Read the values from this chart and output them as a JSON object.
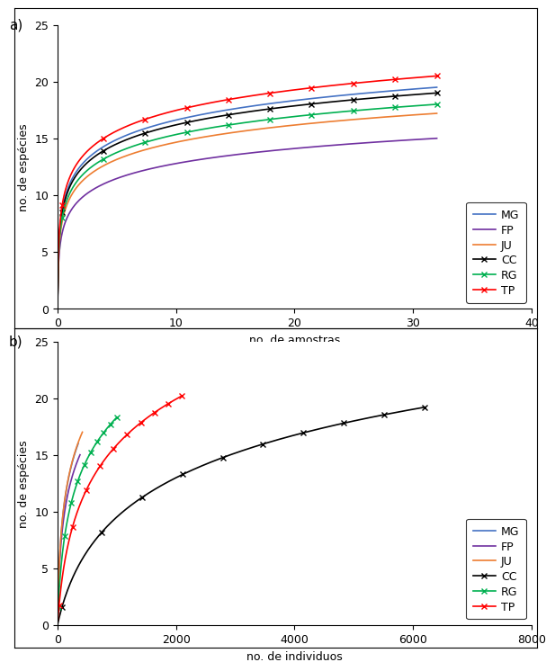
{
  "panel_a": {
    "label": "a)",
    "xlabel": "no. de amostras",
    "ylabel": "no. de espécies",
    "xlim": [
      0,
      40
    ],
    "ylim": [
      0,
      25
    ],
    "xticks": [
      0,
      10,
      20,
      30,
      40
    ],
    "yticks": [
      0,
      5,
      10,
      15,
      20,
      25
    ],
    "series": {
      "MG": {
        "color": "#4472C4",
        "marker": false,
        "x_end": 32,
        "S_max": 19.5,
        "k": 80
      },
      "FP": {
        "color": "#7030A0",
        "marker": false,
        "x_end": 32,
        "S_max": 15.0,
        "k": 80
      },
      "JU": {
        "color": "#ED7D31",
        "marker": false,
        "x_end": 32,
        "S_max": 17.2,
        "k": 80
      },
      "CC": {
        "color": "#000000",
        "marker": true,
        "x_end": 32,
        "S_max": 19.0,
        "k": 80
      },
      "RG": {
        "color": "#00B050",
        "marker": true,
        "x_end": 32,
        "S_max": 18.0,
        "k": 80
      },
      "TP": {
        "color": "#FF0000",
        "marker": true,
        "x_end": 32,
        "S_max": 20.5,
        "k": 80
      }
    }
  },
  "panel_b": {
    "label": "b)",
    "xlabel": "no. de individuos",
    "ylabel": "no. de espécies",
    "xlim": [
      0,
      8000
    ],
    "ylim": [
      0,
      25
    ],
    "xticks": [
      0,
      2000,
      4000,
      6000,
      8000
    ],
    "yticks": [
      0,
      5,
      10,
      15,
      20,
      25
    ],
    "series": {
      "MG": {
        "color": "#4472C4",
        "marker": false,
        "x_end": 350,
        "S_max": 16.0,
        "k": 0.06
      },
      "FP": {
        "color": "#7030A0",
        "marker": false,
        "x_end": 380,
        "S_max": 15.0,
        "k": 0.06
      },
      "JU": {
        "color": "#ED7D31",
        "marker": false,
        "x_end": 420,
        "S_max": 17.0,
        "k": 0.06
      },
      "CC": {
        "color": "#000000",
        "marker": true,
        "x_end": 6200,
        "S_max": 19.2,
        "k": 0.004
      },
      "RG": {
        "color": "#00B050",
        "marker": true,
        "x_end": 1000,
        "S_max": 18.3,
        "k": 0.025
      },
      "TP": {
        "color": "#FF0000",
        "marker": true,
        "x_end": 2100,
        "S_max": 20.2,
        "k": 0.012
      }
    }
  },
  "legend_order": [
    "MG",
    "FP",
    "JU",
    "CC",
    "RG",
    "TP"
  ],
  "bg_color": "#FFFFFF",
  "font_size": 9,
  "linewidth": 1.2
}
